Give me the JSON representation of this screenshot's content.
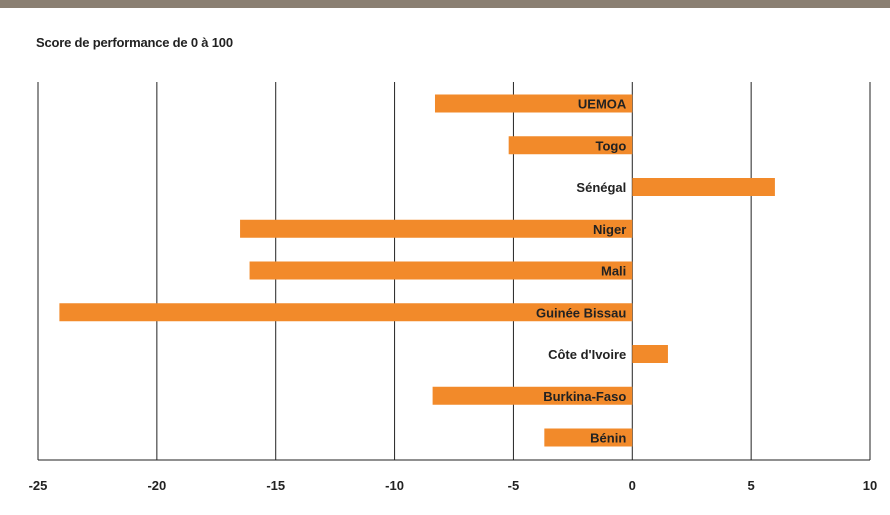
{
  "chart_data": {
    "type": "bar",
    "orientation": "horizontal",
    "title": "Score de performance de 0 à 100",
    "categories": [
      "UEMOA",
      "Togo",
      "Sénégal",
      "Niger",
      "Mali",
      "Guinée Bissau",
      "Côte d'Ivoire",
      "Burkina-Faso",
      "Bénin"
    ],
    "values": [
      -8.3,
      -5.2,
      6.0,
      -16.5,
      -16.1,
      -24.1,
      1.5,
      -8.4,
      -3.7
    ],
    "xlim": [
      -25,
      10
    ],
    "xticks": [
      -25,
      -20,
      -15,
      -10,
      -5,
      0,
      5,
      10
    ],
    "xlabel": "",
    "ylabel": "",
    "grid": "vertical",
    "legend": "none",
    "colors": {
      "bar": "#f28a2a",
      "grid": "#222222",
      "top_rule": "#8a7f72"
    }
  }
}
